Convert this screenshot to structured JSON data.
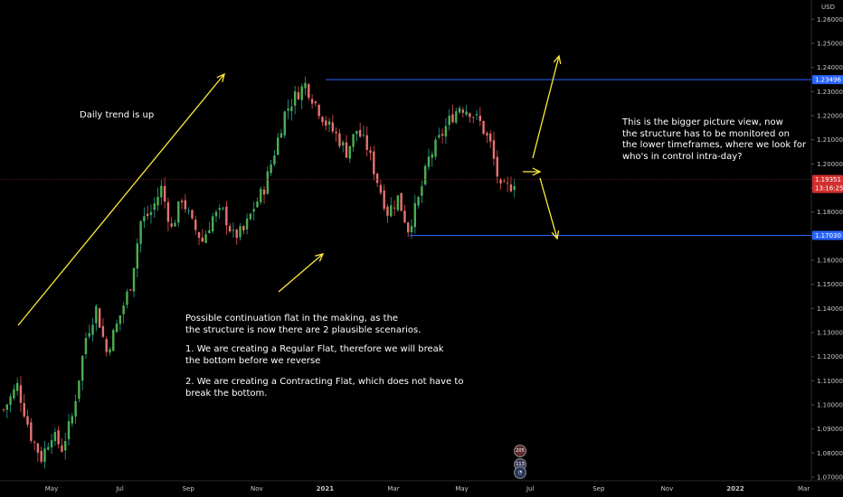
{
  "chart_data": {
    "type": "candlestick",
    "currency_label": "USD",
    "y_axis": {
      "ylim": [
        1.0685,
        1.265
      ],
      "ticks": [
        "1.26000",
        "1.25000",
        "1.24000",
        "1.23000",
        "1.22000",
        "1.21000",
        "1.20000",
        "1.19000",
        "1.18000",
        "1.17000",
        "1.16000",
        "1.15000",
        "1.14000",
        "1.13000",
        "1.12000",
        "1.11000",
        "1.10000",
        "1.09000",
        "1.08000",
        "1.07000"
      ]
    },
    "x_axis": {
      "ticks": [
        "May",
        "Jul",
        "Sep",
        "Nov",
        "2021",
        "Mar",
        "May",
        "Jul",
        "Sep",
        "Nov",
        "2022",
        "Mar"
      ]
    },
    "price_path": [
      [
        0,
        1.098
      ],
      [
        4,
        1.108
      ],
      [
        8,
        1.087
      ],
      [
        11,
        1.078
      ],
      [
        14,
        1.088
      ],
      [
        17,
        1.082
      ],
      [
        20,
        1.095
      ],
      [
        24,
        1.128
      ],
      [
        27,
        1.14
      ],
      [
        30,
        1.122
      ],
      [
        33,
        1.133
      ],
      [
        37,
        1.15
      ],
      [
        40,
        1.176
      ],
      [
        43,
        1.18
      ],
      [
        46,
        1.19
      ],
      [
        49,
        1.173
      ],
      [
        52,
        1.186
      ],
      [
        55,
        1.175
      ],
      [
        58,
        1.168
      ],
      [
        61,
        1.178
      ],
      [
        64,
        1.18
      ],
      [
        67,
        1.17
      ],
      [
        70,
        1.172
      ],
      [
        73,
        1.182
      ],
      [
        76,
        1.19
      ],
      [
        79,
        1.205
      ],
      [
        82,
        1.221
      ],
      [
        85,
        1.228
      ],
      [
        88,
        1.233
      ],
      [
        91,
        1.225
      ],
      [
        94,
        1.217
      ],
      [
        97,
        1.212
      ],
      [
        100,
        1.205
      ],
      [
        103,
        1.214
      ],
      [
        106,
        1.207
      ],
      [
        109,
        1.193
      ],
      [
        112,
        1.18
      ],
      [
        115,
        1.186
      ],
      [
        118,
        1.173
      ],
      [
        121,
        1.185
      ],
      [
        124,
        1.202
      ],
      [
        127,
        1.21
      ],
      [
        130,
        1.218
      ],
      [
        133,
        1.224
      ],
      [
        136,
        1.222
      ],
      [
        139,
        1.217
      ],
      [
        142,
        1.208
      ],
      [
        145,
        1.189
      ],
      [
        148,
        1.191
      ],
      [
        149,
        1.193
      ]
    ],
    "last_candle_index": 149,
    "resistance": {
      "label": "1.23496",
      "value": 1.23496,
      "color": "#2962ff"
    },
    "support": {
      "label": "1.17030",
      "value": 1.1703,
      "color": "#2962ff"
    },
    "current_price": {
      "label": "1.19351",
      "countdown": "13:16:25",
      "value": 1.19351,
      "color": "#d32f2f"
    }
  },
  "annotations": {
    "daily_trend": "Daily trend is up",
    "bigger_picture": "This is the bigger picture view, now\nthe structure has to be monitored on\nthe lower timeframes, where we look for\nwho's in control intra-day?",
    "continuation_intro": "Possible continuation flat in the making, as the\nthe structure is now there are 2 plausible scenarios.",
    "scenario_1": "1.  We are creating a Regular Flat, therefore we will break\n     the bottom before we reverse",
    "scenario_2": "2.  We are creating a Contracting Flat, which does not have to\n     break the bottom."
  },
  "colors": {
    "up_candle": "#26a69a",
    "down_candle": "#ef5350",
    "body_up": "#4caf50",
    "body_down": "#e57373",
    "arrow": "#ffeb3b",
    "background": "#000000"
  },
  "badges": [
    "205",
    "113"
  ]
}
